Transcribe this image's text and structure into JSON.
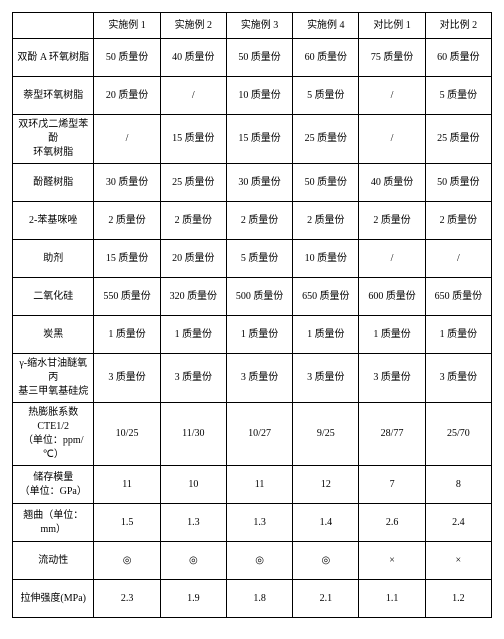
{
  "table": {
    "type": "table",
    "columns": [
      "",
      "实施例 1",
      "实施例 2",
      "实施例 3",
      "实施例 4",
      "对比例 1",
      "对比例 2"
    ],
    "rows": [
      [
        "双酚 A 环氧树脂",
        "50 质量份",
        "40 质量份",
        "50 质量份",
        "60 质量份",
        "75 质量份",
        "60 质量份"
      ],
      [
        "萘型环氧树脂",
        "20 质量份",
        "/",
        "10 质量份",
        "5 质量份",
        "/",
        "5 质量份"
      ],
      [
        "双环戊二烯型苯酚\n环氧树脂",
        "/",
        "15 质量份",
        "15 质量份",
        "25 质量份",
        "/",
        "25 质量份"
      ],
      [
        "酚醛树脂",
        "30 质量份",
        "25 质量份",
        "30 质量份",
        "50 质量份",
        "40 质量份",
        "50 质量份"
      ],
      [
        "2-苯基咪唑",
        "2 质量份",
        "2 质量份",
        "2 质量份",
        "2 质量份",
        "2 质量份",
        "2 质量份"
      ],
      [
        "助剂",
        "15 质量份",
        "20 质量份",
        "5 质量份",
        "10 质量份",
        "/",
        "/"
      ],
      [
        "二氧化硅",
        "550 质量份",
        "320 质量份",
        "500 质量份",
        "650 质量份",
        "600 质量份",
        "650 质量份"
      ],
      [
        "炭黑",
        "1 质量份",
        "1 质量份",
        "1 质量份",
        "1 质量份",
        "1 质量份",
        "1 质量份"
      ],
      [
        "γ-缩水甘油醚氧丙\n基三甲氧基硅烷",
        "3 质量份",
        "3 质量份",
        "3 质量份",
        "3 质量份",
        "3 质量份",
        "3 质量份"
      ],
      [
        "热膨胀系数\nCTE1/2\n（单位：ppm/℃）",
        "10/25",
        "11/30",
        "10/27",
        "9/25",
        "28/77",
        "25/70"
      ],
      [
        "储存模量\n（单位：GPa）",
        "11",
        "10",
        "11",
        "12",
        "7",
        "8"
      ],
      [
        "翘曲（单位：mm）",
        "1.5",
        "1.3",
        "1.3",
        "1.4",
        "2.6",
        "2.4"
      ],
      [
        "流动性",
        "◎",
        "◎",
        "◎",
        "◎",
        "×",
        "×"
      ],
      [
        "拉伸强度(MPa)",
        "2.3",
        "1.9",
        "1.8",
        "2.1",
        "1.1",
        "1.2"
      ]
    ],
    "border_color": "#000000",
    "background_color": "#ffffff",
    "font_size": 10,
    "text_color": "#000000"
  }
}
